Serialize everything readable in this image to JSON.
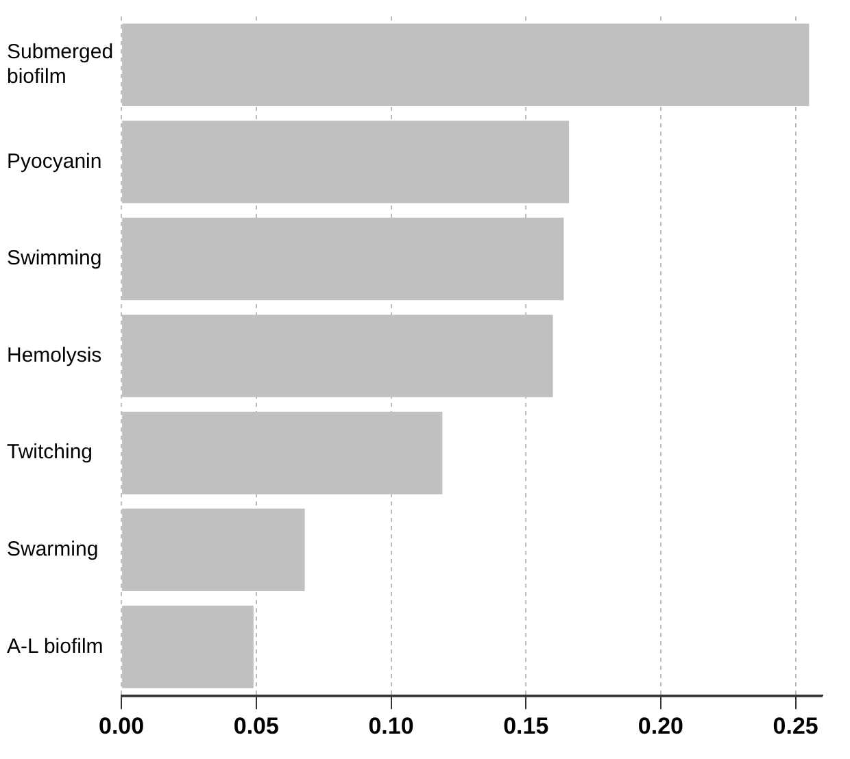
{
  "chart_data": {
    "type": "bar",
    "orientation": "horizontal",
    "categories": [
      "Submerged biofilm",
      "Pyocyanin",
      "Swimming",
      "Hemolysis",
      "Twitching",
      "Swarming",
      "A-L biofilm"
    ],
    "values": [
      0.255,
      0.166,
      0.164,
      0.16,
      0.119,
      0.068,
      0.049
    ],
    "color": "#c0c0c0",
    "xlim": [
      0,
      0.26
    ],
    "xticks": [
      {
        "value": 0,
        "label": "0.00"
      },
      {
        "value": 0.05,
        "label": "0.05"
      },
      {
        "value": 0.1,
        "label": "0.10"
      },
      {
        "value": 0.15,
        "label": "0.15"
      },
      {
        "value": 0.2,
        "label": "0.20"
      },
      {
        "value": 0.25,
        "label": "0.25"
      }
    ],
    "grid": "x",
    "legend": false
  }
}
